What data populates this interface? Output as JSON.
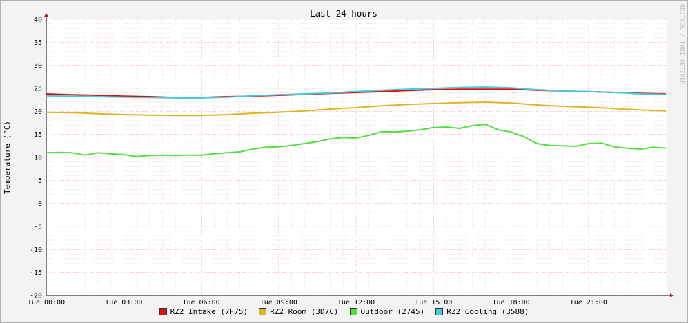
{
  "chart_data": {
    "type": "line",
    "title": "Last 24 hours",
    "ylabel": "Temperature (°C)",
    "xlabel": "",
    "watermark": "RRDTOOL / TOBI OETIKER",
    "ylim": [
      -20,
      40
    ],
    "yticks": [
      "40",
      "35",
      "30",
      "25",
      "20",
      "15",
      "10",
      "5",
      "0",
      "-5",
      "-10",
      "-15",
      "-20"
    ],
    "xlim_hours": [
      0,
      24.05
    ],
    "xticks": [
      {
        "hour": 0,
        "label": "Tue 00:00"
      },
      {
        "hour": 3,
        "label": "Tue 03:00"
      },
      {
        "hour": 6,
        "label": "Tue 06:00"
      },
      {
        "hour": 9,
        "label": "Tue 09:00"
      },
      {
        "hour": 12,
        "label": "Tue 12:00"
      },
      {
        "hour": 15,
        "label": "Tue 15:00"
      },
      {
        "hour": 18,
        "label": "Tue 18:00"
      },
      {
        "hour": 21,
        "label": "Tue 21:00"
      }
    ],
    "grid": true,
    "legend_position": "bottom",
    "series": [
      {
        "name": "RZ2 Intake (7F75)",
        "color": "#dd1111",
        "x": [
          0,
          1,
          2,
          3,
          4,
          5,
          6,
          7,
          8,
          9,
          10,
          11,
          12,
          13,
          14,
          15,
          16,
          17,
          18,
          19,
          20,
          21,
          22,
          23,
          24
        ],
        "y": [
          23.8,
          23.6,
          23.5,
          23.3,
          23.2,
          23.0,
          23.0,
          23.2,
          23.3,
          23.5,
          23.7,
          23.9,
          24.1,
          24.3,
          24.5,
          24.7,
          24.8,
          24.8,
          24.8,
          24.6,
          24.4,
          24.3,
          24.1,
          23.9,
          23.8
        ]
      },
      {
        "name": "RZ2 Room (3D7C)",
        "color": "#e0b428",
        "x": [
          0,
          1,
          2,
          3,
          4,
          5,
          6,
          7,
          8,
          9,
          10,
          11,
          12,
          13,
          14,
          15,
          16,
          17,
          18,
          19,
          20,
          21,
          22,
          23,
          24
        ],
        "y": [
          19.8,
          19.7,
          19.5,
          19.3,
          19.2,
          19.1,
          19.1,
          19.3,
          19.6,
          19.8,
          20.1,
          20.5,
          20.8,
          21.2,
          21.5,
          21.7,
          21.9,
          22.0,
          21.8,
          21.4,
          21.1,
          20.9,
          20.6,
          20.3,
          20.1
        ]
      },
      {
        "name": "Outdoor (2745)",
        "color": "#55dd44",
        "x": [
          0,
          0.5,
          1,
          1.5,
          2,
          2.5,
          3,
          3.5,
          4,
          4.5,
          5,
          5.5,
          6,
          6.5,
          7,
          7.5,
          8,
          8.5,
          9,
          9.5,
          10,
          10.5,
          11,
          11.5,
          12,
          12.5,
          13,
          13.5,
          14,
          14.5,
          15,
          15.5,
          16,
          16.5,
          17,
          17.5,
          18,
          18.5,
          19,
          19.5,
          20,
          20.5,
          21,
          21.5,
          22,
          22.5,
          23,
          23.5,
          24
        ],
        "y": [
          11.0,
          11.1,
          11.0,
          10.5,
          11.0,
          10.8,
          10.6,
          10.2,
          10.4,
          10.5,
          10.4,
          10.5,
          10.5,
          10.8,
          11.0,
          11.2,
          11.8,
          12.2,
          12.3,
          12.6,
          13.0,
          13.4,
          14.0,
          14.3,
          14.2,
          14.8,
          15.6,
          15.5,
          15.7,
          16.0,
          16.5,
          16.6,
          16.3,
          16.9,
          17.2,
          16.0,
          15.5,
          14.5,
          13.0,
          12.6,
          12.5,
          12.4,
          13.0,
          13.1,
          12.3,
          12.0,
          11.8,
          12.2,
          12.0
        ]
      },
      {
        "name": "RZ2 Cooling (3588)",
        "color": "#44ccdd",
        "x": [
          0,
          1,
          2,
          3,
          4,
          5,
          6,
          7,
          8,
          9,
          10,
          11,
          12,
          13,
          14,
          15,
          16,
          17,
          18,
          19,
          20,
          21,
          22,
          23,
          24
        ],
        "y": [
          23.4,
          23.3,
          23.2,
          23.1,
          23.0,
          22.9,
          22.9,
          23.1,
          23.4,
          23.6,
          23.8,
          24.0,
          24.3,
          24.6,
          24.8,
          25.0,
          25.2,
          25.3,
          25.1,
          24.7,
          24.4,
          24.3,
          24.1,
          23.8,
          23.7
        ]
      }
    ]
  }
}
